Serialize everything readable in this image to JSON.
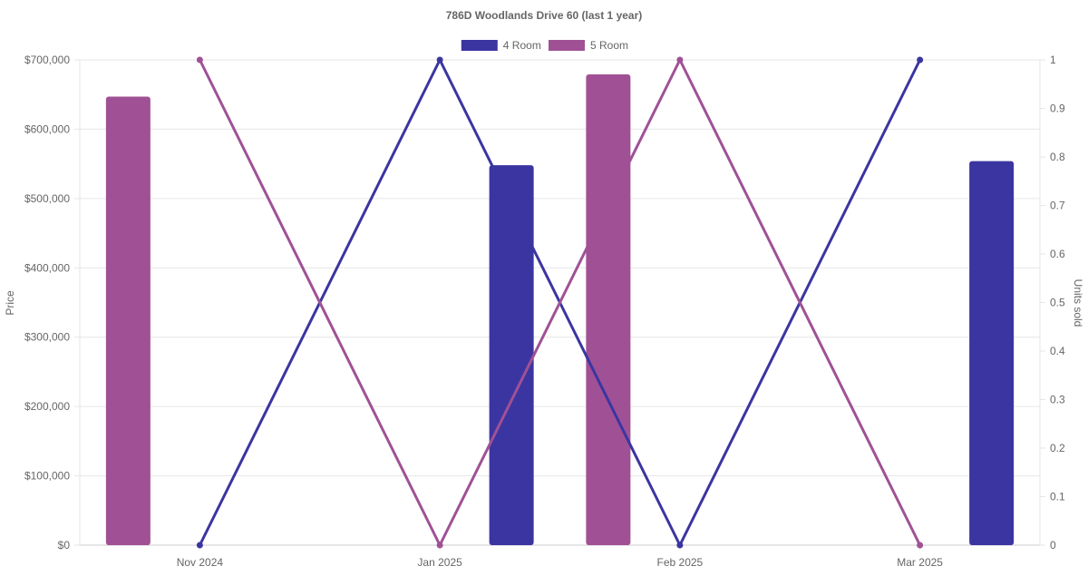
{
  "chart_data": {
    "type": "bar",
    "title": "786D Woodlands Drive 60 (last 1 year)",
    "categories": [
      "Nov 2024",
      "Jan 2025",
      "Feb 2025",
      "Mar 2025"
    ],
    "ylabel": "Price",
    "y2label": "Units sold",
    "ylim": [
      0,
      700000
    ],
    "y2lim": [
      0,
      1
    ],
    "yticks": [
      "$0",
      "$100,000",
      "$200,000",
      "$300,000",
      "$400,000",
      "$500,000",
      "$600,000",
      "$700,000"
    ],
    "y2ticks": [
      "0",
      "0.1",
      "0.2",
      "0.3",
      "0.4",
      "0.5",
      "0.6",
      "0.7",
      "0.8",
      "0.9",
      "1"
    ],
    "legend_position": "top-center",
    "grid": true,
    "series": [
      {
        "name": "4 Room",
        "color": "#3b35a1",
        "bar_values": [
          null,
          548000,
          null,
          554000
        ],
        "units_sold": [
          0,
          1,
          0,
          1
        ]
      },
      {
        "name": "5 Room",
        "color": "#a05195",
        "bar_values": [
          647000,
          null,
          679000,
          null
        ],
        "units_sold": [
          1,
          0,
          1,
          0
        ]
      }
    ]
  }
}
